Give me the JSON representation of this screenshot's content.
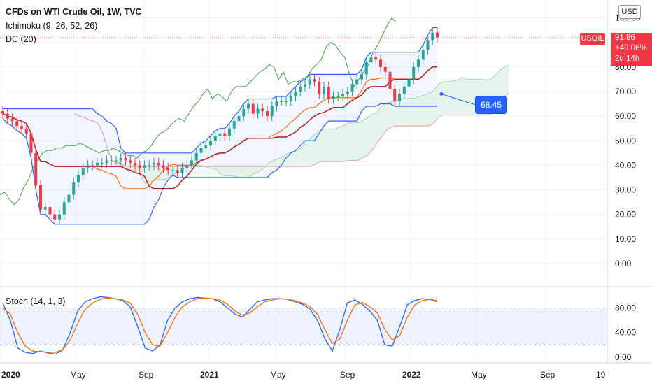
{
  "header": {
    "title": "CFDs on WTI Crude Oil, 1W, TVC",
    "indicator_ichimoku": "Ichimoku (9, 26, 52, 26)",
    "indicator_dc": "DC (20)",
    "stoch_label": "Stoch (14, 1, 3)"
  },
  "currency": "USD",
  "symbol": "USOIL",
  "price_tag": {
    "price": "91.86",
    "change": "+49.06%",
    "time_left": "2d 14h"
  },
  "annotation": {
    "label": "68.45",
    "value": 68.45
  },
  "colors": {
    "up": "#26a69a",
    "down": "#f23645",
    "tenkan": "#2962ff",
    "kijun": "#b71c1c",
    "chikou": "#43a047",
    "donchian": "#2962ff",
    "donchian_basis": "#ff6d00",
    "stoch_k": "#2962ff",
    "stoch_d": "#ff6d00",
    "cloud_up": "#e0f2e9",
    "cloud_down": "#fde2e2"
  },
  "chart_data": [
    {
      "type": "candlestick",
      "title": "CFDs on WTI Crude Oil, 1W, TVC",
      "ylim": [
        -4,
        104
      ],
      "y_ticks": [
        "0.00",
        "10.00",
        "20.00",
        "30.00",
        "40.00",
        "50.00",
        "60.00",
        "70.00",
        "80.00",
        "90.00",
        "100.00"
      ],
      "x_ticks": [
        "2020",
        "May",
        "Sep",
        "2021",
        "May",
        "Sep",
        "2022",
        "May",
        "Sep",
        "19"
      ],
      "last_price": 91.86,
      "annotation_value": 68.45,
      "candles_close_approx": [
        61,
        59,
        58,
        56,
        55,
        53,
        45,
        32,
        22,
        23,
        20,
        18,
        20,
        25,
        28,
        33,
        36,
        39,
        40,
        40,
        41,
        41,
        42,
        42,
        42,
        43,
        42,
        41,
        40,
        39,
        40,
        40,
        41,
        40,
        39,
        38,
        38,
        37,
        39,
        40,
        42,
        45,
        47,
        48,
        50,
        52,
        53,
        52,
        55,
        58,
        60,
        63,
        65,
        61,
        63,
        62,
        60,
        64,
        66,
        66,
        66,
        68,
        70,
        72,
        73,
        75,
        74,
        69,
        72,
        67,
        68,
        68,
        69,
        70,
        73,
        75,
        77,
        82,
        84,
        83,
        80,
        78,
        71,
        66,
        69,
        72,
        75,
        80,
        83,
        87,
        91,
        94,
        92
      ]
    },
    {
      "type": "line",
      "title": "Stoch (14, 1, 3)",
      "ylim": [
        -5,
        100
      ],
      "y_ticks": [
        "0.00",
        "40.00",
        "80.00"
      ],
      "bands": [
        20,
        80
      ],
      "series": [
        {
          "name": "%K",
          "values": [
            88,
            60,
            15,
            8,
            6,
            10,
            7,
            5,
            12,
            40,
            75,
            90,
            95,
            98,
            97,
            95,
            92,
            82,
            50,
            15,
            10,
            20,
            60,
            80,
            90,
            95,
            97,
            96,
            95,
            90,
            80,
            70,
            65,
            78,
            90,
            93,
            95,
            95,
            94,
            90,
            86,
            78,
            60,
            30,
            10,
            45,
            88,
            93,
            86,
            75,
            60,
            20,
            18,
            50,
            85,
            92,
            95,
            94,
            90
          ]
        },
        {
          "name": "%D",
          "values": [
            80,
            70,
            40,
            18,
            10,
            9,
            8,
            8,
            12,
            28,
            55,
            78,
            88,
            94,
            96,
            95,
            93,
            88,
            70,
            40,
            20,
            18,
            40,
            65,
            82,
            90,
            95,
            96,
            95,
            93,
            86,
            75,
            68,
            72,
            82,
            90,
            93,
            95,
            94,
            92,
            88,
            82,
            70,
            45,
            22,
            30,
            60,
            85,
            89,
            82,
            72,
            45,
            28,
            35,
            65,
            85,
            92,
            94,
            92
          ]
        }
      ]
    }
  ]
}
